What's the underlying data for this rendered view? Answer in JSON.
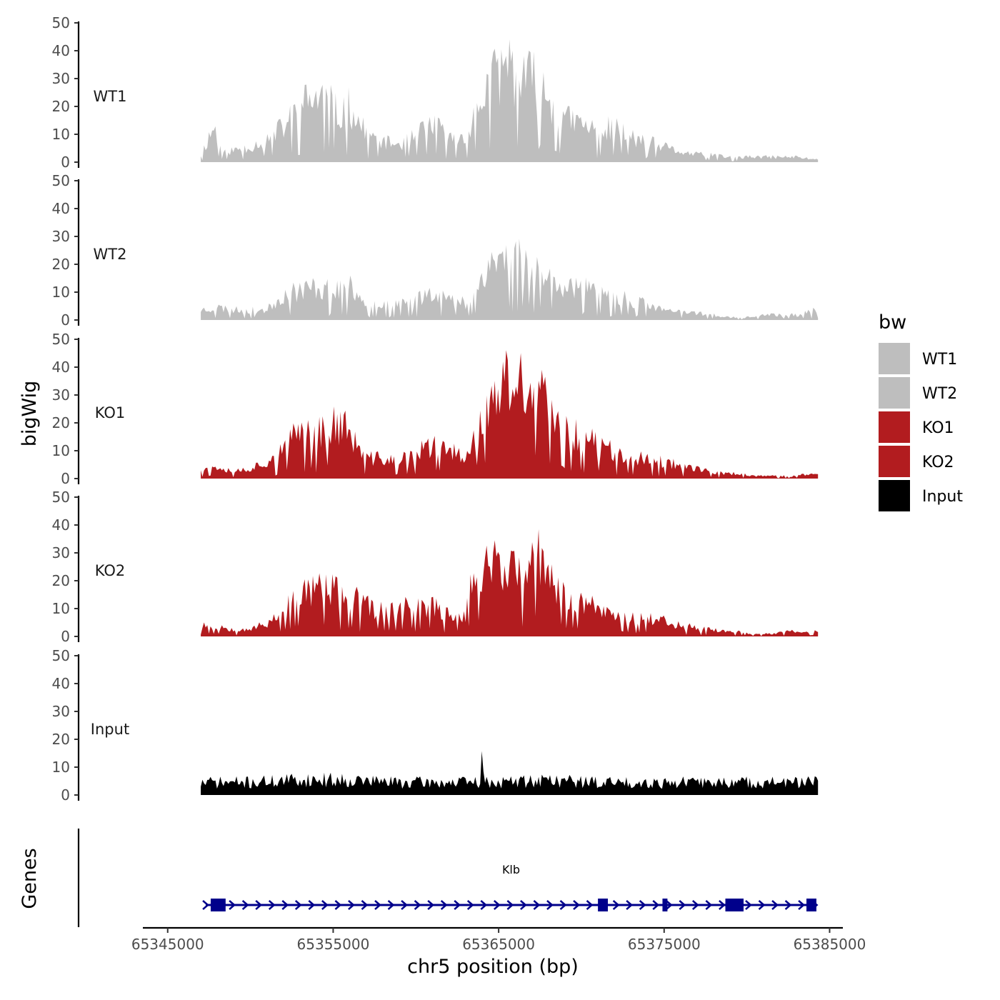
{
  "chart_data": {
    "type": "area",
    "xlabel": "chr5 position (bp)",
    "ylabel": "bigWig",
    "genes_label": "Genes",
    "xlim": [
      65343500,
      65385800
    ],
    "data_range": [
      65347000,
      65384300
    ],
    "ylim": [
      0,
      50
    ],
    "x_ticks": [
      65345000,
      65355000,
      65365000,
      65375000,
      65385000
    ],
    "x_tick_labels": [
      "65345000",
      "65355000",
      "65365000",
      "65375000",
      "65385000"
    ],
    "y_ticks": [
      0,
      10,
      20,
      30,
      40,
      50
    ],
    "y_tick_labels": [
      "0",
      "10",
      "20",
      "30",
      "40",
      "50"
    ],
    "legend": {
      "title": "bw",
      "entries": [
        {
          "label": "WT1",
          "color": "#bebebe"
        },
        {
          "label": "WT2",
          "color": "#bebebe"
        },
        {
          "label": "KO1",
          "color": "#b21c1f"
        },
        {
          "label": "KO2",
          "color": "#b21c1f"
        },
        {
          "label": "Input",
          "color": "#000000"
        }
      ]
    },
    "series": [
      {
        "name": "WT1",
        "color": "#bebebe",
        "anchors": [
          [
            65347000,
            3
          ],
          [
            65347800,
            14
          ],
          [
            65348400,
            4
          ],
          [
            65350000,
            6
          ],
          [
            65351000,
            9
          ],
          [
            65352000,
            14
          ],
          [
            65353000,
            22
          ],
          [
            65354000,
            26
          ],
          [
            65354800,
            25
          ],
          [
            65355300,
            18
          ],
          [
            65356000,
            22
          ],
          [
            65357000,
            11
          ],
          [
            65358000,
            8
          ],
          [
            65359000,
            7
          ],
          [
            65360000,
            10
          ],
          [
            65361000,
            16
          ],
          [
            65362000,
            9
          ],
          [
            65363000,
            10
          ],
          [
            65363800,
            22
          ],
          [
            65364300,
            30
          ],
          [
            65365000,
            35
          ],
          [
            65365600,
            40
          ],
          [
            65366200,
            32
          ],
          [
            65367000,
            33
          ],
          [
            65368000,
            26
          ],
          [
            65369000,
            17
          ],
          [
            65370000,
            15
          ],
          [
            65371000,
            12
          ],
          [
            65372000,
            14
          ],
          [
            65373000,
            10
          ],
          [
            65374000,
            8
          ],
          [
            65375000,
            6
          ],
          [
            65376000,
            4
          ],
          [
            65377000,
            3
          ],
          [
            65378000,
            3
          ],
          [
            65379000,
            2
          ],
          [
            65380000,
            2
          ],
          [
            65381000,
            2
          ],
          [
            65382000,
            2
          ],
          [
            65383000,
            2
          ],
          [
            65384300,
            1
          ]
        ],
        "seed": 11
      },
      {
        "name": "WT2",
        "color": "#bebebe",
        "anchors": [
          [
            65347000,
            4
          ],
          [
            65348000,
            5
          ],
          [
            65349000,
            4
          ],
          [
            65350000,
            4
          ],
          [
            65351000,
            4
          ],
          [
            65352000,
            10
          ],
          [
            65353000,
            12
          ],
          [
            65354000,
            13
          ],
          [
            65355000,
            12
          ],
          [
            65356000,
            13
          ],
          [
            65357000,
            8
          ],
          [
            65358000,
            6
          ],
          [
            65359000,
            6
          ],
          [
            65360000,
            8
          ],
          [
            65361000,
            12
          ],
          [
            65362000,
            8
          ],
          [
            65363000,
            7
          ],
          [
            65363800,
            14
          ],
          [
            65364300,
            22
          ],
          [
            65365000,
            24
          ],
          [
            65366000,
            25
          ],
          [
            65367000,
            23
          ],
          [
            65368000,
            18
          ],
          [
            65369000,
            14
          ],
          [
            65370000,
            13
          ],
          [
            65371000,
            10
          ],
          [
            65372000,
            10
          ],
          [
            65373000,
            8
          ],
          [
            65374000,
            6
          ],
          [
            65375000,
            4
          ],
          [
            65376000,
            3
          ],
          [
            65377000,
            3
          ],
          [
            65378000,
            2
          ],
          [
            65379000,
            1
          ],
          [
            65380000,
            1
          ],
          [
            65381000,
            2
          ],
          [
            65382000,
            2
          ],
          [
            65383000,
            2
          ],
          [
            65384300,
            4
          ]
        ],
        "seed": 23
      },
      {
        "name": "KO1",
        "color": "#b21c1f",
        "anchors": [
          [
            65347000,
            5
          ],
          [
            65348000,
            5
          ],
          [
            65349000,
            3
          ],
          [
            65350000,
            4
          ],
          [
            65351000,
            7
          ],
          [
            65352000,
            11
          ],
          [
            65353000,
            20
          ],
          [
            65354000,
            18
          ],
          [
            65355000,
            22
          ],
          [
            65355800,
            20
          ],
          [
            65356500,
            12
          ],
          [
            65357000,
            8
          ],
          [
            65358000,
            8
          ],
          [
            65359000,
            7
          ],
          [
            65360000,
            10
          ],
          [
            65361000,
            13
          ],
          [
            65362000,
            11
          ],
          [
            65363000,
            9
          ],
          [
            65363700,
            20
          ],
          [
            65364500,
            28
          ],
          [
            65365200,
            37
          ],
          [
            65366000,
            38
          ],
          [
            65367000,
            34
          ],
          [
            65367600,
            33
          ],
          [
            65368500,
            22
          ],
          [
            65369500,
            18
          ],
          [
            65370500,
            16
          ],
          [
            65371500,
            12
          ],
          [
            65372500,
            10
          ],
          [
            65373500,
            8
          ],
          [
            65374500,
            7
          ],
          [
            65375500,
            6
          ],
          [
            65376500,
            5
          ],
          [
            65377500,
            3
          ],
          [
            65378500,
            2
          ],
          [
            65379500,
            2
          ],
          [
            65380500,
            1
          ],
          [
            65381500,
            1
          ],
          [
            65382500,
            1
          ],
          [
            65384300,
            2
          ]
        ],
        "seed": 37
      },
      {
        "name": "KO2",
        "color": "#b21c1f",
        "anchors": [
          [
            65347000,
            5
          ],
          [
            65348000,
            4
          ],
          [
            65349000,
            3
          ],
          [
            65350000,
            3
          ],
          [
            65351000,
            5
          ],
          [
            65352000,
            11
          ],
          [
            65353000,
            17
          ],
          [
            65354000,
            20
          ],
          [
            65355000,
            18
          ],
          [
            65356000,
            16
          ],
          [
            65357000,
            12
          ],
          [
            65358000,
            10
          ],
          [
            65359000,
            11
          ],
          [
            65360000,
            12
          ],
          [
            65361000,
            12
          ],
          [
            65362000,
            9
          ],
          [
            65363000,
            9
          ],
          [
            65363600,
            28
          ],
          [
            65364500,
            30
          ],
          [
            65365500,
            29
          ],
          [
            65366500,
            23
          ],
          [
            65367500,
            32
          ],
          [
            65368500,
            18
          ],
          [
            65369500,
            15
          ],
          [
            65370500,
            13
          ],
          [
            65371500,
            10
          ],
          [
            65372500,
            8
          ],
          [
            65373500,
            8
          ],
          [
            65374500,
            7
          ],
          [
            65375500,
            5
          ],
          [
            65376500,
            4
          ],
          [
            65377500,
            3
          ],
          [
            65378500,
            2
          ],
          [
            65379500,
            2
          ],
          [
            65380500,
            1
          ],
          [
            65381500,
            1
          ],
          [
            65382500,
            2
          ],
          [
            65384300,
            2
          ]
        ],
        "seed": 53
      },
      {
        "name": "Input",
        "color": "#000000",
        "anchors": [
          [
            65347000,
            5
          ],
          [
            65350000,
            5
          ],
          [
            65353000,
            6
          ],
          [
            65356000,
            6
          ],
          [
            65359000,
            5
          ],
          [
            65362000,
            5
          ],
          [
            65365000,
            5
          ],
          [
            65368000,
            6
          ],
          [
            65371000,
            5
          ],
          [
            65374000,
            5
          ],
          [
            65377000,
            5
          ],
          [
            65380000,
            5
          ],
          [
            65384300,
            5
          ]
        ],
        "spike": [
          65364000,
          18
        ],
        "seed": 71
      }
    ],
    "gene": {
      "name": "Klb",
      "strand": "+",
      "start": 65347300,
      "end": 65384200,
      "exons": [
        [
          65347600,
          65348500
        ],
        [
          65371000,
          65371600
        ],
        [
          65374900,
          65375200
        ],
        [
          65378700,
          65379800
        ],
        [
          65383600,
          65384200
        ]
      ],
      "color": "#00008b"
    }
  }
}
